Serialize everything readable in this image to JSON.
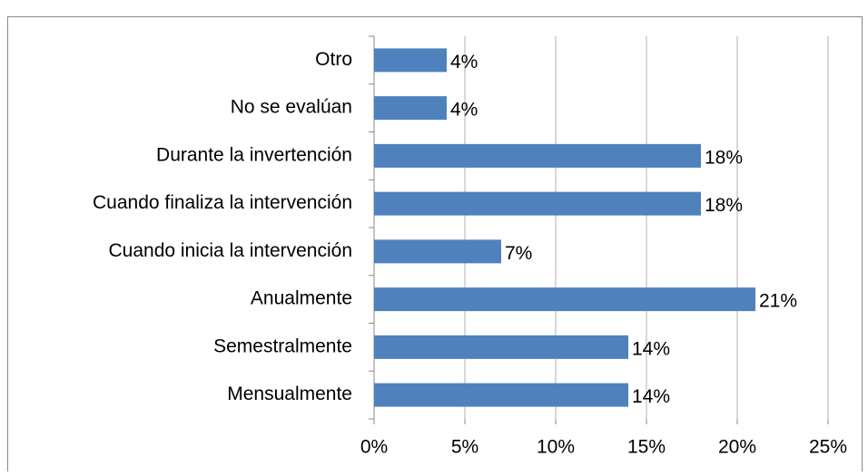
{
  "chart_data": {
    "type": "bar",
    "orientation": "horizontal",
    "categories": [
      "Otro",
      "No se evalúan",
      "Durante la invertención",
      "Cuando finaliza la intervención",
      "Cuando inicia la intervención",
      "Anualmente",
      "Semestralmente",
      "Mensualmente"
    ],
    "values": [
      4,
      4,
      18,
      18,
      7,
      21,
      14,
      14
    ],
    "value_labels": [
      "4%",
      "4%",
      "18%",
      "18%",
      "7%",
      "21%",
      "14%",
      "14%"
    ],
    "color": "#4f81bd",
    "xlim": [
      0,
      25
    ],
    "xticks": [
      {
        "value": 0,
        "label": "0%"
      },
      {
        "value": 5,
        "label": "5%"
      },
      {
        "value": 10,
        "label": "10%"
      },
      {
        "value": 15,
        "label": "15%"
      },
      {
        "value": 20,
        "label": "20%"
      },
      {
        "value": 25,
        "label": "25%"
      }
    ],
    "grid": true
  }
}
